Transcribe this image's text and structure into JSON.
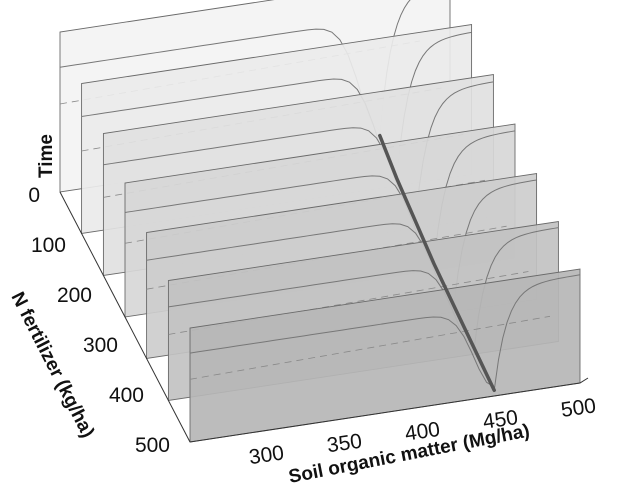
{
  "chart_data": {
    "type": "3d-waterfall",
    "title": "",
    "xlabel": "Soil organic matter (Mg/ha)",
    "ylabel": "N fertilizer (kg/ha)",
    "zlabel": "Time",
    "x_ticks": [
      "300",
      "350",
      "400",
      "450",
      "500"
    ],
    "y_ticks": [
      "0",
      "100",
      "200",
      "300",
      "400",
      "500"
    ],
    "slices_y": [
      0,
      83,
      167,
      250,
      333,
      417,
      500
    ],
    "ridge_x": [
      455,
      452,
      450,
      448,
      447,
      446,
      445
    ],
    "grid": false,
    "legend": "none"
  }
}
